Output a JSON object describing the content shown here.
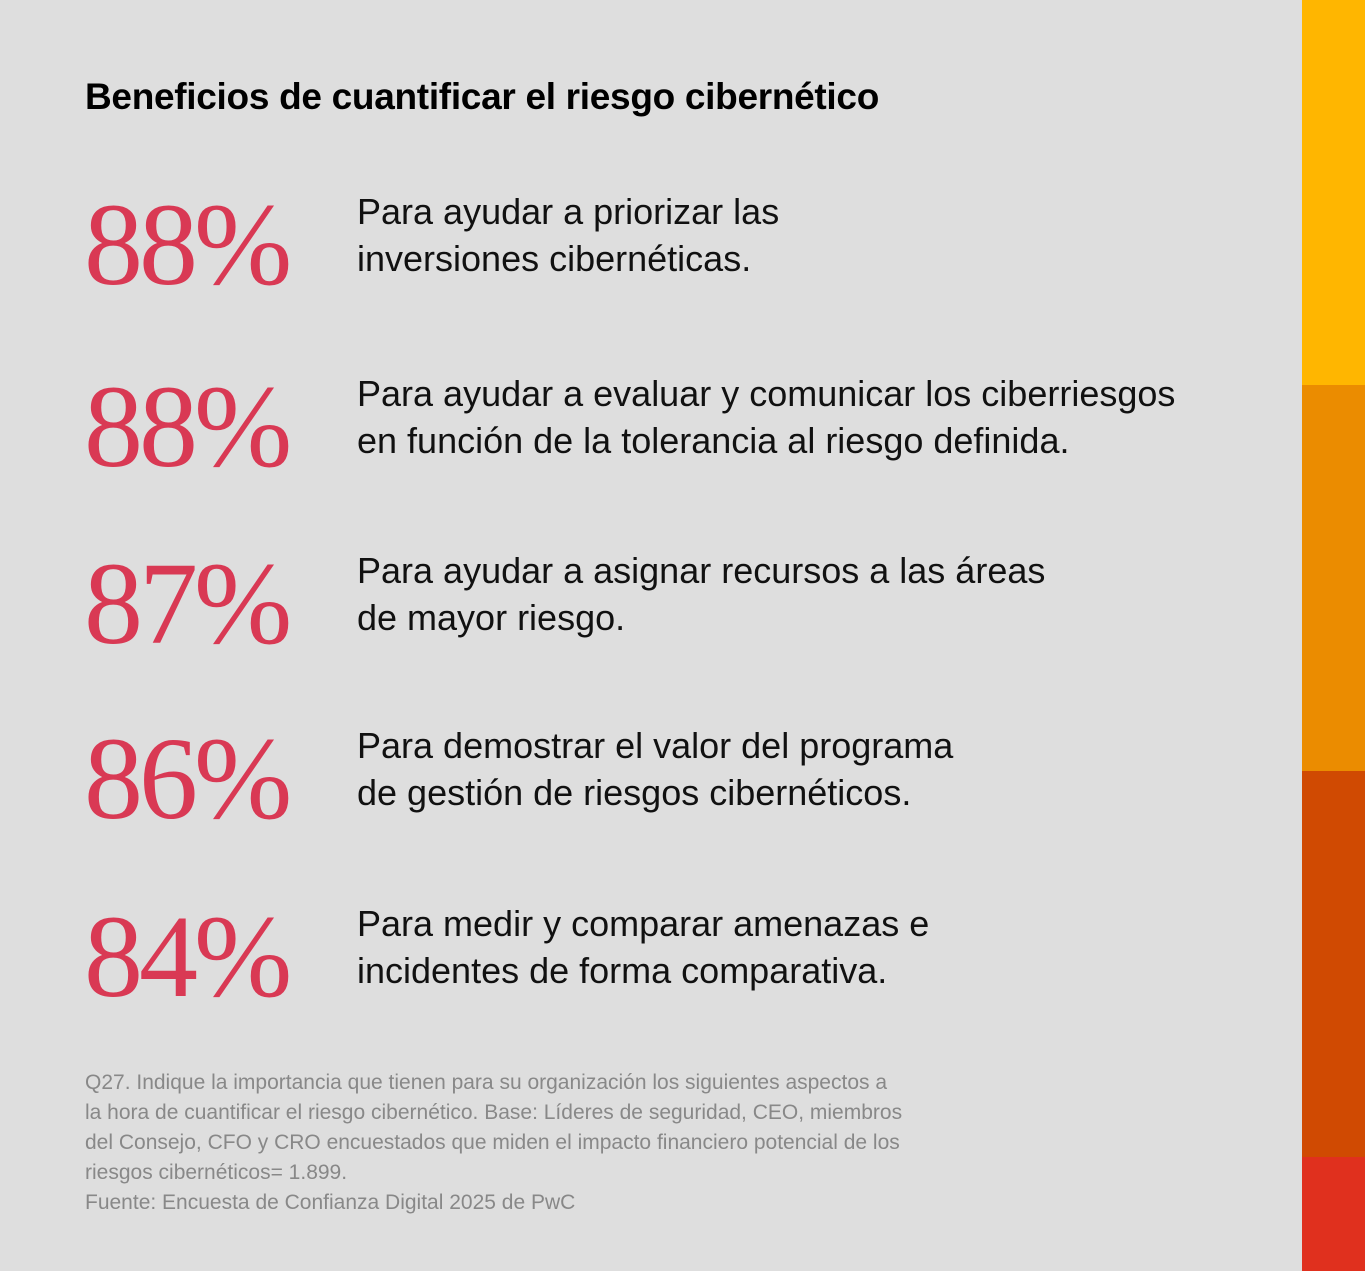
{
  "title": "Beneficios de cuantificar el riesgo cibernético",
  "chart_data": {
    "type": "table",
    "title": "Beneficios de cuantificar el riesgo cibernético",
    "items": [
      {
        "value": "88%",
        "line1": "Para ayudar a priorizar las",
        "line2": "inversiones cibernéticas."
      },
      {
        "value": "88%",
        "line1": "Para ayudar a evaluar y comunicar los ciberriesgos",
        "line2": "en función de la tolerancia al riesgo definida."
      },
      {
        "value": "87%",
        "line1": "Para ayudar a asignar recursos a las áreas",
        "line2": "de mayor riesgo."
      },
      {
        "value": "86%",
        "line1": "Para demostrar el valor del programa",
        "line2": "de gestión de riesgos cibernéticos."
      },
      {
        "value": "84%",
        "line1": "Para medir y comparar amenazas e",
        "line2": "incidentes de forma comparativa."
      }
    ]
  },
  "footnote": {
    "lines": [
      "Q27. Indique la importancia que tienen para su organización los siguientes aspectos a",
      "la hora de cuantificar el riesgo cibernético. Base: Líderes de seguridad, CEO, miembros",
      "del Consejo, CFO y CRO encuestados que miden el impacto financiero potencial de los",
      "riesgos cibernéticos= 1.899.",
      "Fuente: Encuesta de Confianza Digital 2025 de PwC"
    ]
  },
  "colors": {
    "accent": "#d93954",
    "bar1": "#ffb600",
    "bar2": "#eb8c00",
    "bar3": "#d04a02",
    "bar4": "#e0301e"
  }
}
